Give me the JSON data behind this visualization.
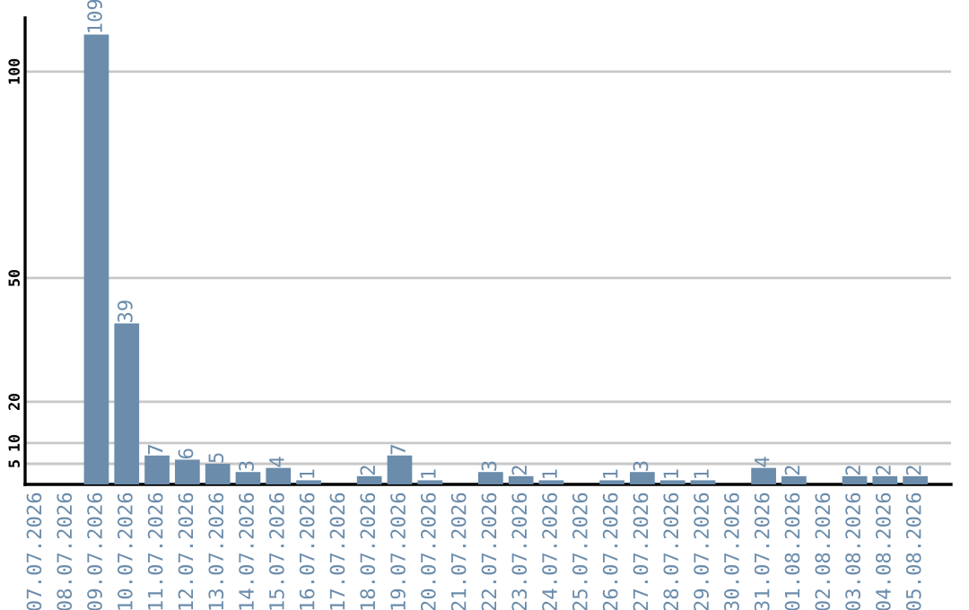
{
  "chart_data": {
    "type": "bar",
    "categories": [
      "07.07.2026",
      "08.07.2026",
      "09.07.2026",
      "10.07.2026",
      "11.07.2026",
      "12.07.2026",
      "13.07.2026",
      "14.07.2026",
      "15.07.2026",
      "16.07.2026",
      "17.07.2026",
      "18.07.2026",
      "19.07.2026",
      "20.07.2026",
      "21.07.2026",
      "22.07.2026",
      "23.07.2026",
      "24.07.2026",
      "25.07.2026",
      "26.07.2026",
      "27.07.2026",
      "28.07.2026",
      "29.07.2026",
      "30.07.2026",
      "31.07.2026",
      "01.08.2026",
      "02.08.2026",
      "03.08.2026",
      "04.08.2026",
      "05.08.2026"
    ],
    "values": [
      0,
      0,
      109,
      39,
      7,
      6,
      5,
      3,
      4,
      1,
      0,
      2,
      7,
      1,
      0,
      3,
      2,
      1,
      0,
      1,
      3,
      1,
      1,
      0,
      4,
      2,
      0,
      2,
      2,
      2
    ],
    "value_labels": [
      null,
      null,
      "109",
      "39",
      "7",
      "6",
      "5",
      "3",
      "4",
      "1",
      null,
      "2",
      "7",
      "1",
      null,
      "3",
      "2",
      "1",
      null,
      "1",
      "3",
      "1",
      "1",
      null,
      "4",
      "2",
      null,
      "2",
      "2",
      "2"
    ],
    "color": "#6b8cab",
    "ylim": [
      0,
      113
    ],
    "yticks": [
      5,
      10,
      20,
      50,
      100
    ],
    "grid": "y"
  }
}
